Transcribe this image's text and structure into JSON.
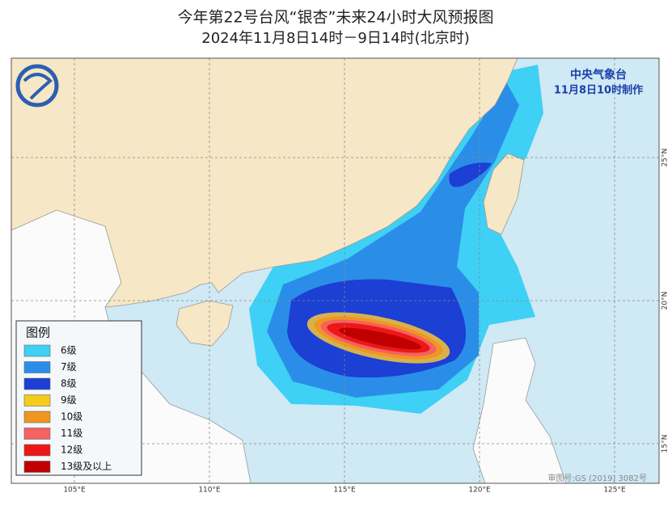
{
  "title": "今年第22号台风“银杏”未来24小时大风预报图",
  "subtitle": "2024年11月8日14时－9日14时(北京时)",
  "agency": "中央气象台",
  "issued": "11月8日10时制作",
  "legend": {
    "title": "图例",
    "items": [
      {
        "label": "6级",
        "color": "#3fd0f5"
      },
      {
        "label": "7级",
        "color": "#2a8ee8"
      },
      {
        "label": "8级",
        "color": "#1c3fd4"
      },
      {
        "label": "9级",
        "color": "#f5cc1e"
      },
      {
        "label": "10级",
        "color": "#f0961e"
      },
      {
        "label": "11级",
        "color": "#f46262"
      },
      {
        "label": "12级",
        "color": "#ee1717"
      },
      {
        "label": "13级及以上",
        "color": "#c00000"
      }
    ]
  },
  "lon_ticks": [
    {
      "value": 105,
      "label": "105°E"
    },
    {
      "value": 110,
      "label": "110°E"
    },
    {
      "value": 115,
      "label": "115°E"
    },
    {
      "value": 120,
      "label": "120°E"
    },
    {
      "value": 125,
      "label": "125°E"
    }
  ],
  "lat_ticks": [
    {
      "value": 25,
      "label": "25°N"
    },
    {
      "value": 20,
      "label": "20°N"
    },
    {
      "value": 15,
      "label": "15°N"
    }
  ],
  "copyright": "审图号:GS (2019) 3082号"
}
